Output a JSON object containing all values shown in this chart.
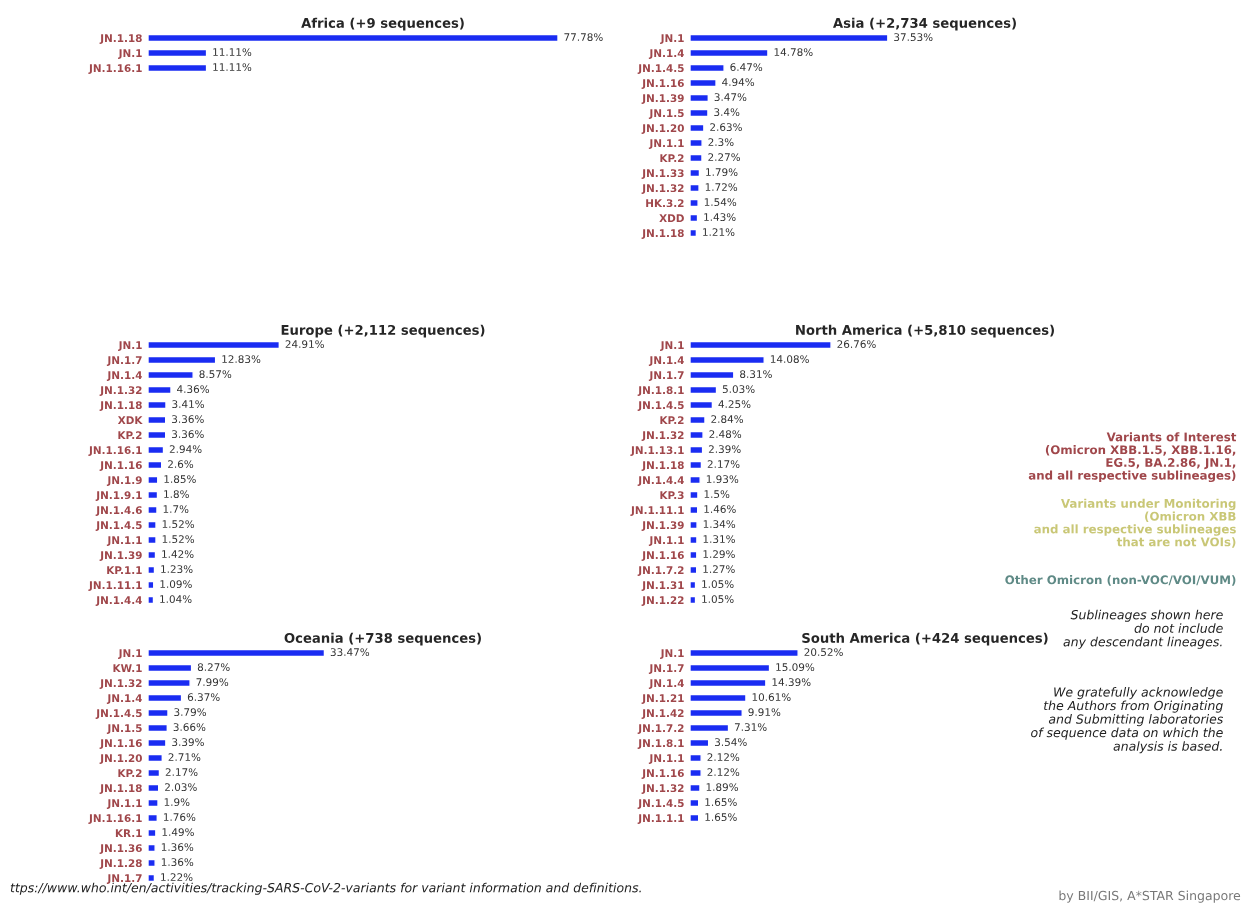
{
  "chart_data": [
    {
      "type": "bar",
      "orientation": "horizontal",
      "title": "Africa (+9 sequences)",
      "categories": [
        "JN.1.18",
        "JN.1",
        "JN.1.16.1"
      ],
      "series": [
        {
          "color": "#1a2cf2",
          "values": [
            77.78,
            11.11,
            11.11
          ],
          "value_labels": [
            "77.78%",
            "11.11%",
            "11.11%"
          ]
        }
      ]
    },
    {
      "type": "bar",
      "orientation": "horizontal",
      "title": "Asia (+2,734 sequences)",
      "categories": [
        "JN.1",
        "JN.1.4",
        "JN.1.4.5",
        "JN.1.16",
        "JN.1.39",
        "JN.1.5",
        "JN.1.20",
        "JN.1.1",
        "KP.2",
        "JN.1.33",
        "JN.1.32",
        "HK.3.2",
        "XDD",
        "JN.1.18"
      ],
      "series": [
        {
          "color": "#1a2cf2",
          "values": [
            37.53,
            14.78,
            6.47,
            4.94,
            3.47,
            3.4,
            2.63,
            2.3,
            2.27,
            1.79,
            1.72,
            1.54,
            1.43,
            1.21
          ],
          "value_labels": [
            "37.53%",
            "14.78%",
            "6.47%",
            "4.94%",
            "3.47%",
            "3.4%",
            "2.63%",
            "2.3%",
            "2.27%",
            "1.79%",
            "1.72%",
            "1.54%",
            "1.43%",
            "1.21%"
          ]
        }
      ]
    },
    {
      "type": "bar",
      "orientation": "horizontal",
      "title": "Europe (+2,112 sequences)",
      "categories": [
        "JN.1",
        "JN.1.7",
        "JN.1.4",
        "JN.1.32",
        "JN.1.18",
        "XDK",
        "KP.2",
        "JN.1.16.1",
        "JN.1.16",
        "JN.1.9",
        "JN.1.9.1",
        "JN.1.4.6",
        "JN.1.4.5",
        "JN.1.1",
        "JN.1.39",
        "KP.1.1",
        "JN.1.11.1",
        "JN.1.4.4"
      ],
      "series": [
        {
          "color": "#1a2cf2",
          "values": [
            24.91,
            12.83,
            8.57,
            4.36,
            3.41,
            3.36,
            3.36,
            2.94,
            2.6,
            1.85,
            1.8,
            1.7,
            1.52,
            1.52,
            1.42,
            1.23,
            1.09,
            1.04
          ],
          "value_labels": [
            "24.91%",
            "12.83%",
            "8.57%",
            "4.36%",
            "3.41%",
            "3.36%",
            "3.36%",
            "2.94%",
            "2.6%",
            "1.85%",
            "1.8%",
            "1.7%",
            "1.52%",
            "1.52%",
            "1.42%",
            "1.23%",
            "1.09%",
            "1.04%"
          ]
        }
      ]
    },
    {
      "type": "bar",
      "orientation": "horizontal",
      "title": "North America (+5,810 sequences)",
      "categories": [
        "JN.1",
        "JN.1.4",
        "JN.1.7",
        "JN.1.8.1",
        "JN.1.4.5",
        "KP.2",
        "JN.1.32",
        "JN.1.13.1",
        "JN.1.18",
        "JN.1.4.4",
        "KP.3",
        "JN.1.11.1",
        "JN.1.39",
        "JN.1.1",
        "JN.1.16",
        "JN.1.7.2",
        "JN.1.31",
        "JN.1.22"
      ],
      "series": [
        {
          "color": "#1a2cf2",
          "values": [
            26.76,
            14.08,
            8.31,
            5.03,
            4.25,
            2.84,
            2.48,
            2.39,
            2.17,
            1.93,
            1.5,
            1.46,
            1.34,
            1.31,
            1.29,
            1.27,
            1.05,
            1.05
          ],
          "value_labels": [
            "26.76%",
            "14.08%",
            "8.31%",
            "5.03%",
            "4.25%",
            "2.84%",
            "2.48%",
            "2.39%",
            "2.17%",
            "1.93%",
            "1.5%",
            "1.46%",
            "1.34%",
            "1.31%",
            "1.29%",
            "1.27%",
            "1.05%",
            "1.05%"
          ]
        }
      ]
    },
    {
      "type": "bar",
      "orientation": "horizontal",
      "title": "Oceania (+738 sequences)",
      "categories": [
        "JN.1",
        "KW.1",
        "JN.1.32",
        "JN.1.4",
        "JN.1.4.5",
        "JN.1.5",
        "JN.1.16",
        "JN.1.20",
        "KP.2",
        "JN.1.18",
        "JN.1.1",
        "JN.1.16.1",
        "KR.1",
        "JN.1.36",
        "JN.1.28",
        "JN.1.7"
      ],
      "series": [
        {
          "color": "#1a2cf2",
          "values": [
            33.47,
            8.27,
            7.99,
            6.37,
            3.79,
            3.66,
            3.39,
            2.71,
            2.17,
            2.03,
            1.9,
            1.76,
            1.49,
            1.36,
            1.36,
            1.22
          ],
          "value_labels": [
            "33.47%",
            "8.27%",
            "7.99%",
            "6.37%",
            "3.79%",
            "3.66%",
            "3.39%",
            "2.71%",
            "2.17%",
            "2.03%",
            "1.9%",
            "1.76%",
            "1.49%",
            "1.36%",
            "1.36%",
            "1.22%"
          ]
        }
      ]
    },
    {
      "type": "bar",
      "orientation": "horizontal",
      "title": "South America (+424 sequences)",
      "categories": [
        "JN.1",
        "JN.1.7",
        "JN.1.4",
        "JN.1.21",
        "JN.1.42",
        "JN.1.7.2",
        "JN.1.8.1",
        "JN.1.1",
        "JN.1.16",
        "JN.1.32",
        "JN.1.4.5",
        "JN.1.1.1"
      ],
      "series": [
        {
          "color": "#1a2cf2",
          "values": [
            20.52,
            15.09,
            14.39,
            10.61,
            9.91,
            7.31,
            3.54,
            2.12,
            2.12,
            1.89,
            1.65,
            1.65
          ],
          "value_labels": [
            "20.52%",
            "15.09%",
            "14.39%",
            "10.61%",
            "9.91%",
            "7.31%",
            "3.54%",
            "2.12%",
            "2.12%",
            "1.89%",
            "1.65%",
            "1.65%"
          ]
        }
      ]
    },
    {
      "type": "other",
      "annotations": [
        "Variants of Interest\n(Omicron XBB.1.5, XBB.1.16,\nEG.5, BA.2.86, JN.1,\nand all respective sublineages)",
        "Variants under Monitoring\n(Omicron XBB\nand all respective sublineages\nthat are not VOIs)",
        "Other Omicron (non-VOC/VOI/VUM)",
        "Sublineages shown here\ndo not include\nany descendant lineages.",
        "We gratefully acknowledge\nthe Authors from Originating\nand Submitting laboratories\nof sequence data on which the\nanalysis is based.",
        "ttps://www.who.int/en/activities/tracking-SARS-CoV-2-variants for variant information and definitions.",
        "by BII/GIS, A*STAR Singapore"
      ]
    }
  ]
}
